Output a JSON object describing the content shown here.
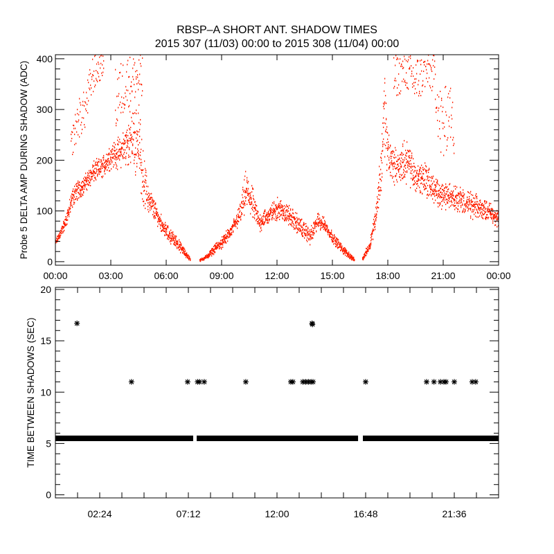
{
  "title_line1": "RBSP–A SHORT ANT. SHADOW TIMES",
  "title_line2": "2015 307 (11/03) 00:00 to 2015 308 (11/04) 00:00",
  "colors": {
    "points_top": "#ff2000",
    "points_bottom": "#000000",
    "axes": "#000000"
  },
  "chart_data": [
    {
      "type": "scatter",
      "ylabel": "Probe 5 DELTA AMP DURING SHADOW (ADC)",
      "xlim_hours": [
        0,
        24
      ],
      "ylim": [
        -7,
        408
      ],
      "x_tick_labels": [
        "00:00",
        "03:00",
        "06:00",
        "09:00",
        "12:00",
        "15:00",
        "18:00",
        "21:00",
        "00:00"
      ],
      "y_tick_labels": [
        "0",
        "100",
        "200",
        "300",
        "400"
      ],
      "y_ticks": [
        0,
        100,
        200,
        300,
        400
      ],
      "grid": false,
      "marker": "dot",
      "dense_band_hour_low_high": [
        [
          0.0,
          30,
          45
        ],
        [
          0.5,
          60,
          90
        ],
        [
          1.0,
          110,
          160
        ],
        [
          1.5,
          130,
          170
        ],
        [
          2.0,
          150,
          200
        ],
        [
          2.5,
          160,
          210
        ],
        [
          3.0,
          180,
          240
        ],
        [
          3.5,
          180,
          250
        ],
        [
          4.0,
          180,
          300
        ],
        [
          4.5,
          150,
          330
        ],
        [
          4.75,
          100,
          220
        ],
        [
          5.0,
          90,
          160
        ],
        [
          5.5,
          70,
          110
        ],
        [
          6.0,
          40,
          75
        ],
        [
          6.5,
          25,
          55
        ],
        [
          7.0,
          8,
          25
        ],
        [
          7.3,
          0,
          8
        ],
        null,
        [
          7.8,
          0,
          5
        ],
        [
          8.2,
          5,
          15
        ],
        [
          8.6,
          15,
          35
        ],
        [
          9.0,
          25,
          50
        ],
        [
          9.5,
          45,
          75
        ],
        [
          10.0,
          70,
          120
        ],
        [
          10.3,
          90,
          190
        ],
        [
          10.6,
          80,
          160
        ],
        [
          11.0,
          55,
          100
        ],
        [
          11.5,
          70,
          110
        ],
        [
          12.0,
          80,
          130
        ],
        [
          12.5,
          70,
          120
        ],
        [
          13.0,
          55,
          100
        ],
        [
          13.5,
          40,
          80
        ],
        [
          13.8,
          30,
          70
        ],
        [
          14.2,
          60,
          100
        ],
        [
          14.5,
          60,
          90
        ],
        [
          15.0,
          35,
          60
        ],
        [
          15.5,
          15,
          35
        ],
        [
          16.0,
          3,
          15
        ],
        [
          16.2,
          0,
          5
        ],
        null,
        [
          16.6,
          0,
          8
        ],
        [
          17.0,
          20,
          45
        ],
        [
          17.3,
          60,
          110
        ],
        [
          17.6,
          120,
          230
        ],
        [
          17.8,
          200,
          400
        ],
        [
          18.0,
          150,
          260
        ],
        [
          18.5,
          150,
          220
        ],
        [
          19.0,
          150,
          250
        ],
        [
          19.5,
          130,
          200
        ],
        [
          20.0,
          120,
          210
        ],
        [
          20.5,
          110,
          170
        ],
        [
          21.0,
          100,
          160
        ],
        [
          21.5,
          100,
          160
        ],
        [
          22.0,
          90,
          150
        ],
        [
          22.5,
          80,
          140
        ],
        [
          23.0,
          80,
          130
        ],
        [
          23.5,
          80,
          120
        ],
        [
          24.0,
          60,
          100
        ]
      ],
      "sparse_band_hour_low_high": [
        [
          0.8,
          200,
          250
        ],
        [
          1.2,
          240,
          320
        ],
        [
          1.6,
          260,
          340
        ],
        [
          2.0,
          330,
          408
        ],
        [
          2.6,
          370,
          408
        ],
        null,
        [
          3.2,
          250,
          380
        ],
        [
          3.8,
          300,
          408
        ],
        [
          4.4,
          320,
          408
        ],
        [
          4.7,
          300,
          408
        ],
        null,
        [
          18.3,
          320,
          408
        ],
        [
          19.0,
          340,
          408
        ],
        [
          19.5,
          300,
          408
        ],
        [
          20.0,
          340,
          408
        ],
        [
          20.5,
          330,
          408
        ],
        [
          20.8,
          200,
          350
        ],
        [
          21.0,
          180,
          340
        ],
        [
          21.3,
          250,
          360
        ],
        [
          21.6,
          200,
          300
        ]
      ]
    },
    {
      "type": "scatter",
      "ylabel": "TIME BETWEEN SHADOWS (SEC)",
      "xlim_hours": [
        0,
        24
      ],
      "ylim": [
        -0.3,
        20.2
      ],
      "x_ticks_hours": [
        2.4,
        7.2,
        12.0,
        16.8,
        21.6
      ],
      "x_tick_labels": [
        "02:24",
        "07:12",
        "12:00",
        "16:48",
        "21:36"
      ],
      "y_ticks": [
        0,
        5,
        10,
        15,
        20
      ],
      "y_tick_labels": [
        "0",
        "5",
        "10",
        "15",
        "20"
      ],
      "grid": false,
      "marker": "asterisk",
      "continuous_value": 5.5,
      "continuous_segments_hours": [
        [
          0,
          7.46
        ],
        [
          7.65,
          16.39
        ],
        [
          16.65,
          24
        ]
      ],
      "points": [
        [
          1.17,
          16.7
        ],
        [
          13.9,
          16.7
        ],
        [
          13.92,
          16.6
        ],
        [
          4.12,
          11
        ],
        [
          7.16,
          11
        ],
        [
          7.7,
          11
        ],
        [
          7.8,
          11
        ],
        [
          8.06,
          11
        ],
        [
          10.31,
          11
        ],
        [
          12.75,
          11
        ],
        [
          12.86,
          11
        ],
        [
          13.4,
          11
        ],
        [
          13.55,
          11
        ],
        [
          13.7,
          11
        ],
        [
          13.85,
          11
        ],
        [
          13.95,
          11
        ],
        [
          16.8,
          11
        ],
        [
          20.1,
          11
        ],
        [
          20.5,
          11
        ],
        [
          20.85,
          11
        ],
        [
          21.04,
          11
        ],
        [
          21.15,
          11
        ],
        [
          21.6,
          11
        ],
        [
          22.57,
          11
        ],
        [
          22.76,
          11
        ]
      ]
    }
  ]
}
